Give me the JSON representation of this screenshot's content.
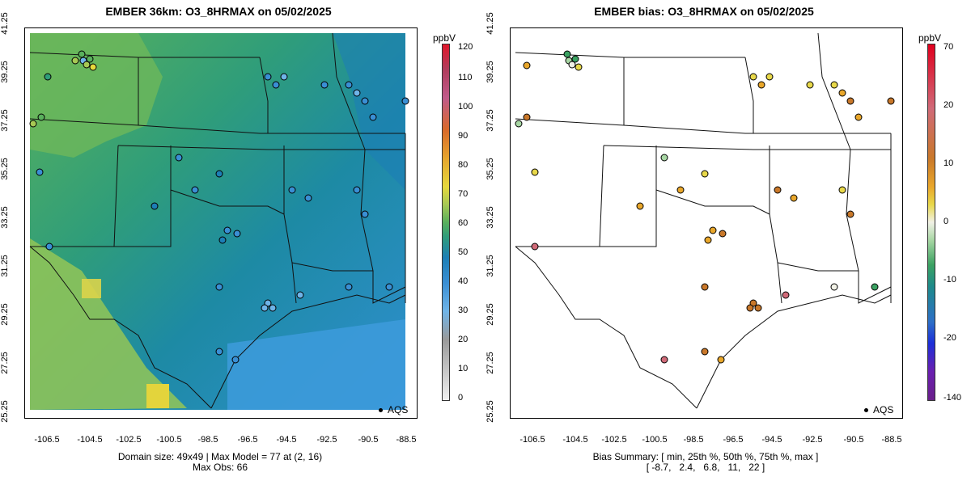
{
  "left_panel": {
    "title": "EMBER 36km: O3_8HRMAX on 05/02/2025",
    "x_ticks": [
      "-106.5",
      "-104.5",
      "-102.5",
      "-100.5",
      "-98.5",
      "-96.5",
      "-94.5",
      "-92.5",
      "-90.5",
      "-88.5"
    ],
    "y_ticks": [
      "25.25",
      "27.25",
      "29.25",
      "31.25",
      "33.25",
      "35.25",
      "37.25",
      "39.25",
      "41.25"
    ],
    "footer_line1": "Domain size: 49x49 | Max Model = 77 at (2, 16)",
    "footer_line2": "Max Obs: 66",
    "legend_label": "AQS",
    "colorbar": {
      "unit": "ppbV",
      "labels": [
        "0",
        "10",
        "20",
        "30",
        "40",
        "50",
        "60",
        "70",
        "80",
        "90",
        "100",
        "110",
        "120"
      ],
      "colors": [
        "#f0f0f0",
        "#c8c8c8",
        "#9a9a9a",
        "#6fb4e8",
        "#3a8fd4",
        "#1d7fb6",
        "#2f9d7a",
        "#59b05c",
        "#a7c954",
        "#e6d83c",
        "#e6a52d",
        "#d96a2a",
        "#c05a8a",
        "#b03c5c",
        "#e0162a"
      ]
    }
  },
  "right_panel": {
    "title": "EMBER bias: O3_8HRMAX on 05/02/2025",
    "x_ticks": [
      "-106.5",
      "-104.5",
      "-102.5",
      "-100.5",
      "-98.5",
      "-96.5",
      "-94.5",
      "-92.5",
      "-90.5",
      "-88.5"
    ],
    "y_ticks": [
      "25.25",
      "27.25",
      "29.25",
      "31.25",
      "33.25",
      "35.25",
      "37.25",
      "39.25",
      "41.25"
    ],
    "footer_line1": "Bias Summary: [ min, 25th %, 50th %, 75th %, max ]",
    "footer_line2": "[ -8.7,   2.4,   6.8,   11,   22 ]",
    "legend_label": "AQS",
    "colorbar": {
      "unit": "ppbV",
      "labels": [
        "70",
        "20",
        "10",
        "0",
        "-10",
        "-20",
        "-140"
      ],
      "colors": [
        "#e0001e",
        "#d06a78",
        "#c9782a",
        "#e9a72b",
        "#e8d84a",
        "#f1f1e6",
        "#a8d7a4",
        "#3ba262",
        "#1e8a8a",
        "#2d6fc7",
        "#1c2fd8",
        "#6a1fb0",
        "#6a1f8a"
      ]
    }
  }
}
